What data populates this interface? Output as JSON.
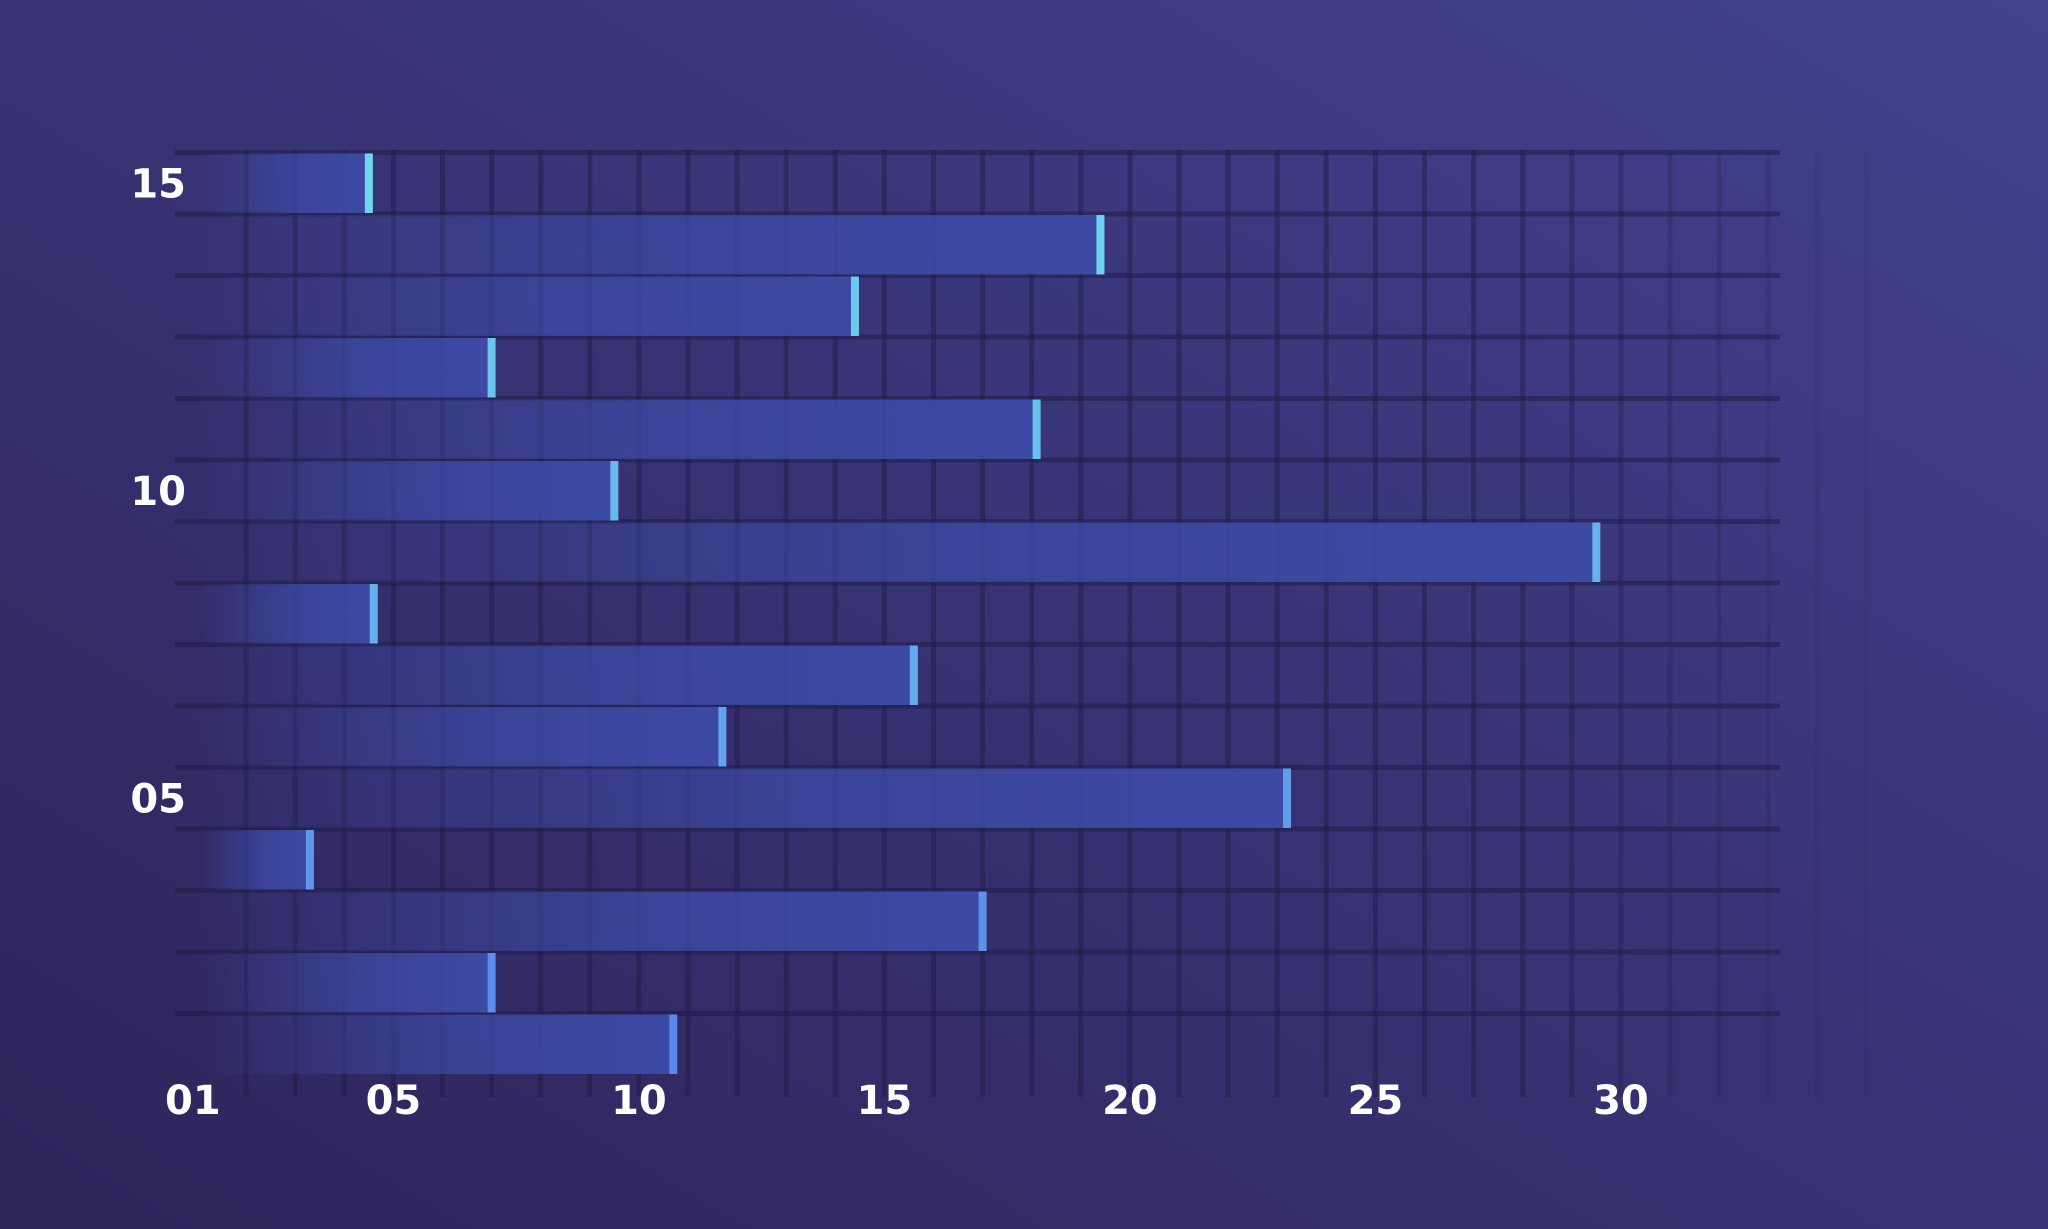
{
  "theme": {
    "background_start": "#2e2459",
    "background_end": "#41418f",
    "bar_fill": "#3c4aa5",
    "marker_top": "#6fd6ee",
    "marker_bottom": "#5a87ea",
    "axis_color": "#f0a0ea",
    "grid_color": "#1e1a42",
    "label_color": "#ffffff"
  },
  "chart_data": {
    "type": "bar",
    "orientation": "horizontal",
    "title": "",
    "xlabel": "",
    "ylabel": "",
    "xlim": [
      1,
      35
    ],
    "ylim": [
      1,
      19
    ],
    "x_ticks": [
      1,
      5,
      10,
      15,
      20,
      25,
      30
    ],
    "x_tick_labels": [
      "01",
      "05",
      "10",
      "15",
      "20",
      "25",
      "30"
    ],
    "y_ticks": [
      5,
      10,
      15
    ],
    "y_tick_labels": [
      "05",
      "10",
      "15"
    ],
    "grid": true,
    "legend": "none",
    "bars": [
      {
        "row": 1,
        "value": 10.7
      },
      {
        "row": 2,
        "value": 7.0
      },
      {
        "row": 3,
        "value": 17.0
      },
      {
        "row": 4,
        "value": 3.3
      },
      {
        "row": 5,
        "value": 23.2
      },
      {
        "row": 6,
        "value": 11.7
      },
      {
        "row": 7,
        "value": 15.6
      },
      {
        "row": 8,
        "value": 4.6
      },
      {
        "row": 9,
        "value": 29.5
      },
      {
        "row": 10,
        "value": 9.5
      },
      {
        "row": 11,
        "value": 18.1
      },
      {
        "row": 12,
        "value": 7.0
      },
      {
        "row": 13,
        "value": 14.4
      },
      {
        "row": 14,
        "value": 19.4
      },
      {
        "row": 15,
        "value": 4.5
      }
    ]
  }
}
